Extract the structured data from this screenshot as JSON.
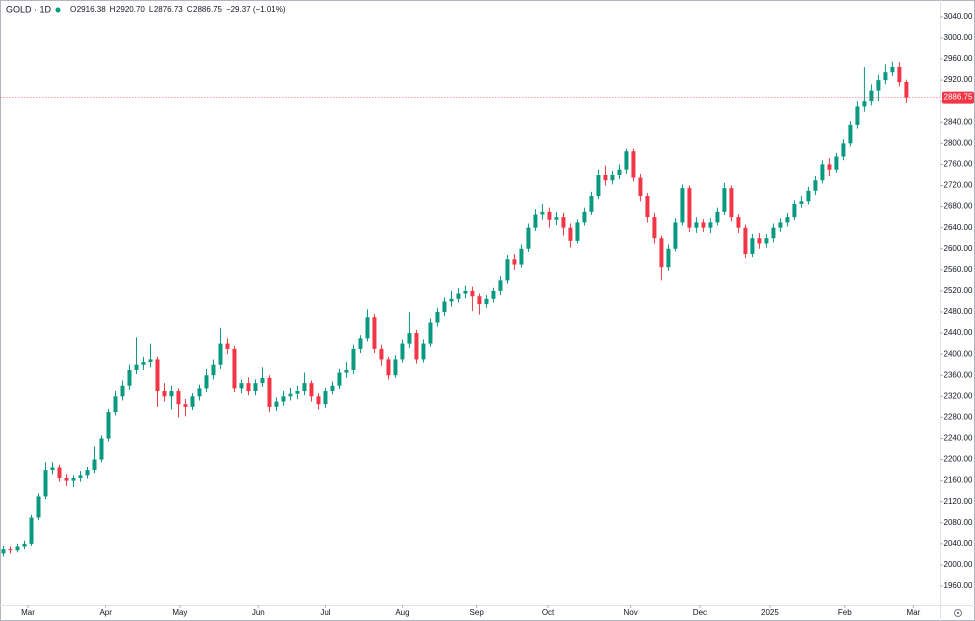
{
  "chart_data": {
    "type": "candlestick",
    "title": "GOLD · 1D",
    "ohlc": [
      {
        "key": "O",
        "value": "2916.38"
      },
      {
        "key": "H",
        "value": "2920.70"
      },
      {
        "key": "L",
        "value": "2876.73"
      },
      {
        "key": "C",
        "value": "2886.75"
      }
    ],
    "change": "−29.37 (−1.01%)",
    "up_color": "#089981",
    "down_color": "#f23645",
    "xlim": [
      -0.5,
      133.8
    ],
    "xticks": [
      {
        "value": 3.5,
        "label": "Mar"
      },
      {
        "value": 14.6,
        "label": "Apr"
      },
      {
        "value": 25.2,
        "label": "May"
      },
      {
        "value": 36.4,
        "label": "Jun"
      },
      {
        "value": 46,
        "label": "Jul"
      },
      {
        "value": 57,
        "label": "Aug"
      },
      {
        "value": 67.6,
        "label": "Sep"
      },
      {
        "value": 77.8,
        "label": "Oct"
      },
      {
        "value": 89.6,
        "label": "Nov"
      },
      {
        "value": 99.5,
        "label": "Dec"
      },
      {
        "value": 109.5,
        "label": "2025"
      },
      {
        "value": 120.2,
        "label": "Feb"
      },
      {
        "value": 130,
        "label": "Mar"
      }
    ],
    "ylim": [
      1924,
      3072
    ],
    "yticks": [
      {
        "value": 1960,
        "label": "1960.00"
      },
      {
        "value": 2000,
        "label": "2000.00"
      },
      {
        "value": 2040,
        "label": "2040.00"
      },
      {
        "value": 2080,
        "label": "2080.00"
      },
      {
        "value": 2120,
        "label": "2120.00"
      },
      {
        "value": 2160,
        "label": "2160.00"
      },
      {
        "value": 2200,
        "label": "2200.00"
      },
      {
        "value": 2240,
        "label": "2240.00"
      },
      {
        "value": 2280,
        "label": "2280.00"
      },
      {
        "value": 2320,
        "label": "2320.00"
      },
      {
        "value": 2360,
        "label": "2360.00"
      },
      {
        "value": 2400,
        "label": "2400.00"
      },
      {
        "value": 2440,
        "label": "2440.00"
      },
      {
        "value": 2480,
        "label": "2480.00"
      },
      {
        "value": 2520,
        "label": "2520.00"
      },
      {
        "value": 2560,
        "label": "2560.00"
      },
      {
        "value": 2600,
        "label": "2600.00"
      },
      {
        "value": 2640,
        "label": "2640.00"
      },
      {
        "value": 2680,
        "label": "2680.00"
      },
      {
        "value": 2720,
        "label": "2720.00"
      },
      {
        "value": 2760,
        "label": "2760.00"
      },
      {
        "value": 2800,
        "label": "2800.00"
      },
      {
        "value": 2840,
        "label": "2840.00"
      },
      {
        "value": 2880,
        "label": "2880.00"
      },
      {
        "value": 2920,
        "label": "2920.00"
      },
      {
        "value": 2960,
        "label": "2960.00"
      },
      {
        "value": 3000,
        "label": "3000.00"
      },
      {
        "value": 3040,
        "label": "3040.00"
      }
    ],
    "open": [
      2022,
      2030,
      2028,
      2035,
      2040,
      2090,
      2130,
      2180,
      2185,
      2165,
      2160,
      2165,
      2170,
      2180,
      2200,
      2240,
      2290,
      2320,
      2340,
      2370,
      2380,
      2385,
      2390,
      2330,
      2320,
      2330,
      2305,
      2300,
      2320,
      2335,
      2360,
      2380,
      2420,
      2410,
      2335,
      2345,
      2330,
      2345,
      2355,
      2300,
      2310,
      2320,
      2325,
      2330,
      2345,
      2320,
      2305,
      2330,
      2340,
      2365,
      2370,
      2410,
      2430,
      2470,
      2410,
      2390,
      2360,
      2390,
      2420,
      2440,
      2390,
      2420,
      2460,
      2480,
      2500,
      2505,
      2515,
      2520,
      2510,
      2495,
      2505,
      2520,
      2540,
      2580,
      2570,
      2600,
      2640,
      2665,
      2670,
      2655,
      2660,
      2640,
      2615,
      2650,
      2670,
      2700,
      2740,
      2730,
      2740,
      2750,
      2785,
      2735,
      2700,
      2660,
      2620,
      2565,
      2600,
      2650,
      2715,
      2640,
      2650,
      2640,
      2650,
      2670,
      2715,
      2660,
      2640,
      2590,
      2620,
      2610,
      2620,
      2640,
      2650,
      2660,
      2685,
      2690,
      2710,
      2730,
      2760,
      2750,
      2775,
      2800,
      2835,
      2870,
      2880,
      2900,
      2920,
      2935,
      2945,
      2916.38
    ],
    "high": [
      2036,
      2035,
      2040,
      2046,
      2095,
      2136,
      2195,
      2195,
      2190,
      2172,
      2170,
      2178,
      2186,
      2225,
      2246,
      2296,
      2330,
      2350,
      2380,
      2432,
      2395,
      2420,
      2395,
      2345,
      2340,
      2335,
      2315,
      2326,
      2342,
      2372,
      2390,
      2450,
      2430,
      2415,
      2352,
      2356,
      2352,
      2375,
      2360,
      2318,
      2330,
      2336,
      2340,
      2365,
      2350,
      2326,
      2336,
      2348,
      2372,
      2385,
      2418,
      2436,
      2485,
      2476,
      2418,
      2395,
      2398,
      2428,
      2480,
      2446,
      2428,
      2468,
      2488,
      2508,
      2520,
      2525,
      2530,
      2528,
      2515,
      2512,
      2526,
      2548,
      2588,
      2590,
      2608,
      2648,
      2675,
      2685,
      2678,
      2670,
      2668,
      2648,
      2656,
      2678,
      2708,
      2750,
      2758,
      2748,
      2760,
      2790,
      2790,
      2742,
      2706,
      2668,
      2625,
      2608,
      2658,
      2722,
      2720,
      2660,
      2656,
      2658,
      2678,
      2725,
      2720,
      2666,
      2646,
      2628,
      2630,
      2628,
      2648,
      2658,
      2668,
      2692,
      2700,
      2718,
      2738,
      2768,
      2772,
      2782,
      2808,
      2842,
      2880,
      2945,
      2912,
      2930,
      2950,
      2955,
      2954,
      2920.7
    ],
    "low": [
      2016,
      2022,
      2024,
      2030,
      2036,
      2085,
      2125,
      2172,
      2158,
      2150,
      2148,
      2158,
      2164,
      2174,
      2195,
      2234,
      2284,
      2312,
      2332,
      2362,
      2370,
      2375,
      2300,
      2310,
      2295,
      2280,
      2282,
      2294,
      2312,
      2328,
      2352,
      2372,
      2400,
      2328,
      2326,
      2322,
      2322,
      2338,
      2290,
      2292,
      2302,
      2312,
      2315,
      2322,
      2310,
      2295,
      2298,
      2324,
      2334,
      2355,
      2362,
      2402,
      2424,
      2402,
      2378,
      2352,
      2355,
      2384,
      2412,
      2382,
      2384,
      2414,
      2452,
      2472,
      2490,
      2498,
      2506,
      2482,
      2475,
      2488,
      2498,
      2512,
      2534,
      2560,
      2564,
      2594,
      2634,
      2655,
      2640,
      2645,
      2625,
      2602,
      2610,
      2644,
      2664,
      2694,
      2720,
      2722,
      2732,
      2742,
      2728,
      2690,
      2650,
      2610,
      2540,
      2558,
      2595,
      2644,
      2632,
      2630,
      2632,
      2630,
      2644,
      2664,
      2652,
      2630,
      2582,
      2584,
      2600,
      2602,
      2612,
      2632,
      2642,
      2654,
      2678,
      2684,
      2702,
      2724,
      2738,
      2744,
      2768,
      2794,
      2828,
      2860,
      2872,
      2880,
      2912,
      2928,
      2908,
      2876.73
    ],
    "close": [
      2030,
      2028,
      2035,
      2040,
      2090,
      2130,
      2180,
      2185,
      2165,
      2160,
      2165,
      2170,
      2180,
      2200,
      2240,
      2290,
      2320,
      2340,
      2370,
      2380,
      2385,
      2390,
      2330,
      2320,
      2330,
      2305,
      2300,
      2320,
      2335,
      2360,
      2380,
      2420,
      2410,
      2335,
      2345,
      2330,
      2345,
      2355,
      2300,
      2310,
      2320,
      2325,
      2330,
      2345,
      2320,
      2305,
      2330,
      2340,
      2365,
      2370,
      2410,
      2430,
      2470,
      2410,
      2390,
      2360,
      2390,
      2420,
      2440,
      2390,
      2420,
      2460,
      2480,
      2500,
      2505,
      2515,
      2520,
      2510,
      2495,
      2505,
      2520,
      2540,
      2580,
      2570,
      2600,
      2640,
      2665,
      2670,
      2655,
      2660,
      2640,
      2615,
      2650,
      2670,
      2700,
      2740,
      2730,
      2740,
      2750,
      2785,
      2735,
      2700,
      2660,
      2620,
      2565,
      2600,
      2650,
      2715,
      2640,
      2650,
      2640,
      2650,
      2670,
      2715,
      2660,
      2640,
      2590,
      2620,
      2610,
      2620,
      2640,
      2650,
      2660,
      2685,
      2690,
      2710,
      2730,
      2760,
      2750,
      2775,
      2800,
      2835,
      2870,
      2880,
      2900,
      2920,
      2935,
      2945,
      2916.12,
      2886.75
    ]
  }
}
